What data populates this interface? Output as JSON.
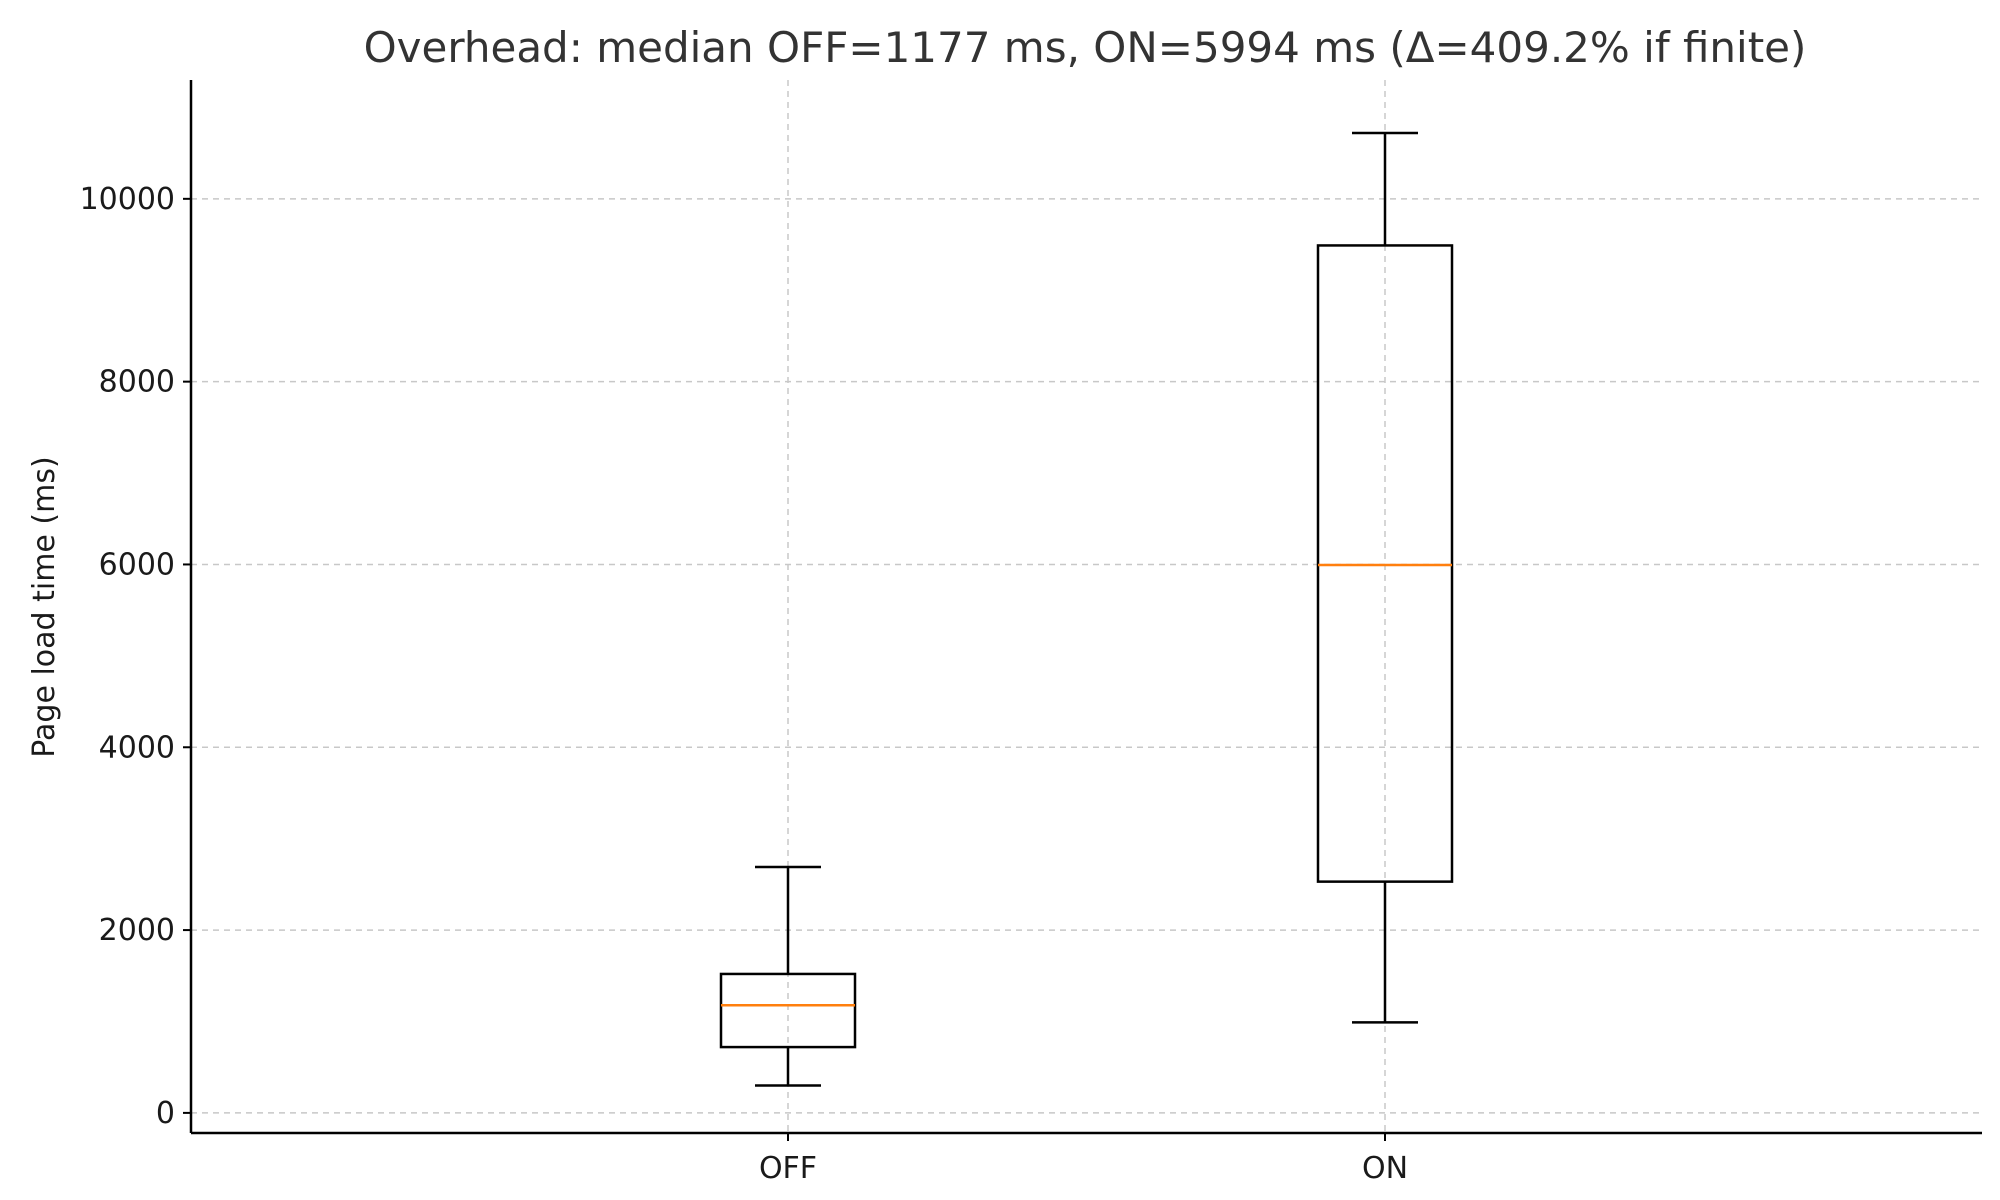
{
  "chart_data": {
    "type": "box",
    "title": "Overhead: median OFF=1177 ms, ON=5994 ms (Δ=409.2% if finite)",
    "xlabel": "",
    "ylabel": "Page load time (ms)",
    "ylim": [
      -220,
      11300
    ],
    "yticks": [
      0,
      2000,
      4000,
      6000,
      8000,
      10000
    ],
    "grid": true,
    "categories": [
      "OFF",
      "ON"
    ],
    "boxes": [
      {
        "label": "OFF",
        "whisker_low": 300,
        "q1": 720,
        "median": 1177,
        "q3": 1520,
        "whisker_high": 2690
      },
      {
        "label": "ON",
        "whisker_low": 990,
        "q1": 2530,
        "median": 5994,
        "q3": 9490,
        "whisker_high": 10720
      }
    ],
    "colors": {
      "median": "#ff7f0e",
      "box": "#000000",
      "grid": "#c8c8c8"
    }
  }
}
